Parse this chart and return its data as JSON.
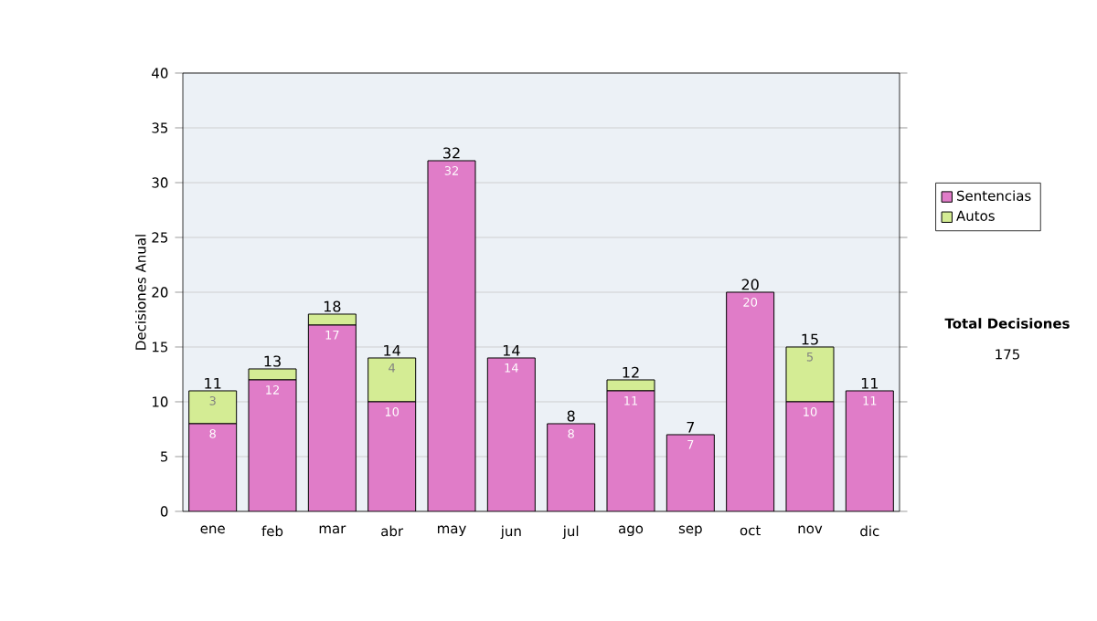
{
  "chart_data": {
    "type": "bar",
    "stacked": true,
    "ylabel": "Decisiones Anual",
    "categories": [
      "ene",
      "feb",
      "mar",
      "abr",
      "may",
      "jun",
      "jul",
      "ago",
      "sep",
      "oct",
      "nov",
      "dic"
    ],
    "series": [
      {
        "name": "Sentencias",
        "color": "#e07cc8",
        "values": [
          8,
          12,
          17,
          10,
          32,
          14,
          8,
          11,
          7,
          20,
          10,
          11
        ],
        "value_labels": [
          "8",
          "12",
          "17",
          "10",
          "32",
          "14",
          "8",
          "11",
          "7",
          "20",
          "10",
          "11"
        ]
      },
      {
        "name": "Autos",
        "color": "#d4ec94",
        "values": [
          3,
          1,
          1,
          4,
          0,
          0,
          0,
          1,
          0,
          0,
          5,
          0
        ],
        "value_labels": [
          "3",
          null,
          null,
          "4",
          null,
          null,
          null,
          null,
          null,
          null,
          "5",
          null
        ]
      }
    ],
    "totals": [
      "11",
      "13",
      "18",
      "14",
      "32",
      "14",
      "8",
      "12",
      "7",
      "20",
      "15",
      "11"
    ],
    "ylim": [
      0,
      40
    ],
    "yticks": [
      0,
      5,
      10,
      15,
      20,
      25,
      30,
      35,
      40
    ],
    "grid": "y",
    "legend": "right",
    "annotations": [
      "Total Decisiones",
      "175"
    ]
  }
}
